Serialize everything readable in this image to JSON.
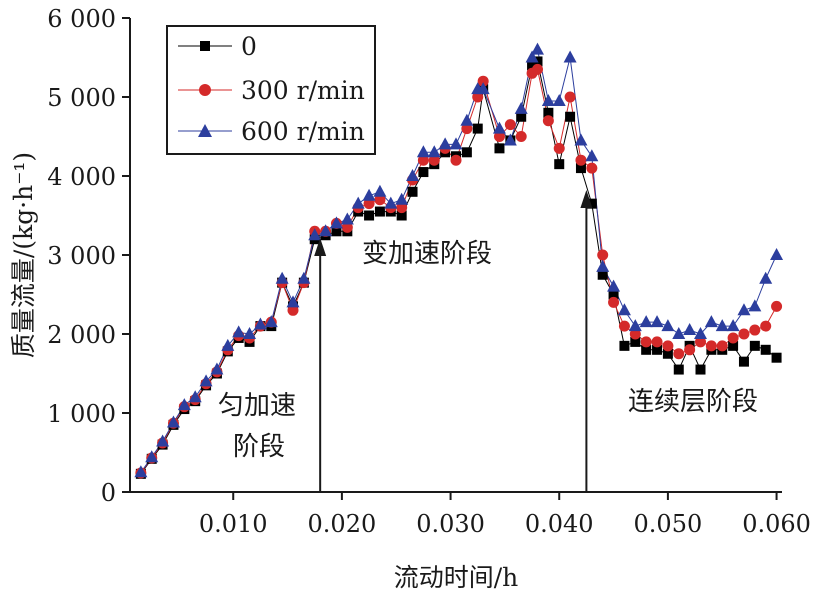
{
  "chart_data": {
    "type": "line",
    "xlabel": "流动时间/h",
    "ylabel": "质量流量/(kg·h⁻¹)",
    "xlim": [
      0.0005,
      0.0605
    ],
    "ylim": [
      0,
      6000
    ],
    "x_ticks": [
      0.01,
      0.02,
      0.03,
      0.04,
      0.05,
      0.06
    ],
    "x_tick_labels": [
      "0.010",
      "0.020",
      "0.030",
      "0.040",
      "0.050",
      "0.060"
    ],
    "y_ticks": [
      0,
      1000,
      2000,
      3000,
      4000,
      5000,
      6000
    ],
    "y_tick_labels": [
      "0",
      "1 000",
      "2 000",
      "3 000",
      "4 000",
      "5 000",
      "6 000"
    ],
    "legend_position": "top-left",
    "annotations": [
      {
        "text_lines": [
          "匀加速",
          "阶段"
        ],
        "arrow_x": 0.018
      },
      {
        "text_lines": [
          "变加速阶段"
        ]
      },
      {
        "text_lines": [
          "连续层阶段"
        ],
        "arrow_x": 0.0425
      }
    ],
    "x": [
      0.0015,
      0.0025,
      0.0035,
      0.0045,
      0.0055,
      0.0065,
      0.0075,
      0.0085,
      0.0095,
      0.0105,
      0.0115,
      0.0125,
      0.0135,
      0.0145,
      0.0155,
      0.0165,
      0.0175,
      0.0185,
      0.0195,
      0.0205,
      0.0215,
      0.0225,
      0.0235,
      0.0245,
      0.0255,
      0.0265,
      0.0275,
      0.0285,
      0.0295,
      0.0305,
      0.0315,
      0.0325,
      0.033,
      0.0345,
      0.0355,
      0.0365,
      0.0375,
      0.038,
      0.039,
      0.04,
      0.041,
      0.042,
      0.043,
      0.044,
      0.045,
      0.046,
      0.047,
      0.048,
      0.049,
      0.05,
      0.051,
      0.052,
      0.053,
      0.054,
      0.055,
      0.056,
      0.057,
      0.058,
      0.059,
      0.06
    ],
    "series": [
      {
        "name": "0",
        "color": "#000000",
        "marker": "square",
        "values": [
          230,
          420,
          600,
          850,
          1050,
          1150,
          1350,
          1500,
          1780,
          1950,
          1900,
          2100,
          2100,
          2650,
          2350,
          2650,
          3200,
          3250,
          3300,
          3300,
          3550,
          3500,
          3550,
          3550,
          3500,
          3800,
          4050,
          4150,
          4300,
          4250,
          4300,
          4600,
          5100,
          4350,
          4450,
          4750,
          5400,
          5450,
          4800,
          4150,
          4750,
          4100,
          3650,
          2750,
          2500,
          1850,
          1900,
          1800,
          1800,
          1750,
          1550,
          1850,
          1550,
          1800,
          1800,
          1850,
          1650,
          1850,
          1800,
          1700
        ]
      },
      {
        "name": "300 r/min",
        "color": "#d42a2a",
        "marker": "circle",
        "values": [
          240,
          430,
          620,
          870,
          1080,
          1170,
          1370,
          1520,
          1800,
          1980,
          1950,
          2100,
          2150,
          2650,
          2300,
          2650,
          3300,
          3300,
          3400,
          3350,
          3600,
          3650,
          3700,
          3600,
          3600,
          3950,
          4200,
          4200,
          4350,
          4200,
          4600,
          5000,
          5200,
          4500,
          4650,
          4500,
          5300,
          5350,
          4700,
          4350,
          5000,
          4200,
          4100,
          3000,
          2400,
          2100,
          2000,
          1900,
          1900,
          1850,
          1750,
          1800,
          1900,
          1850,
          1850,
          1950,
          2000,
          2050,
          2100,
          2350
        ]
      },
      {
        "name": "600 r/min",
        "color": "#2c3e9e",
        "marker": "triangle",
        "values": [
          250,
          440,
          640,
          880,
          1100,
          1200,
          1400,
          1550,
          1850,
          2020,
          2000,
          2120,
          2150,
          2700,
          2400,
          2700,
          3250,
          3300,
          3400,
          3450,
          3650,
          3750,
          3800,
          3650,
          3700,
          4000,
          4300,
          4300,
          4400,
          4400,
          4700,
          5100,
          5100,
          4600,
          4450,
          4850,
          5500,
          5600,
          4950,
          4950,
          5500,
          4450,
          4250,
          2850,
          2600,
          2300,
          2100,
          2150,
          2150,
          2100,
          2000,
          2050,
          2000,
          2150,
          2100,
          2100,
          2300,
          2350,
          2700,
          3000
        ]
      }
    ]
  }
}
